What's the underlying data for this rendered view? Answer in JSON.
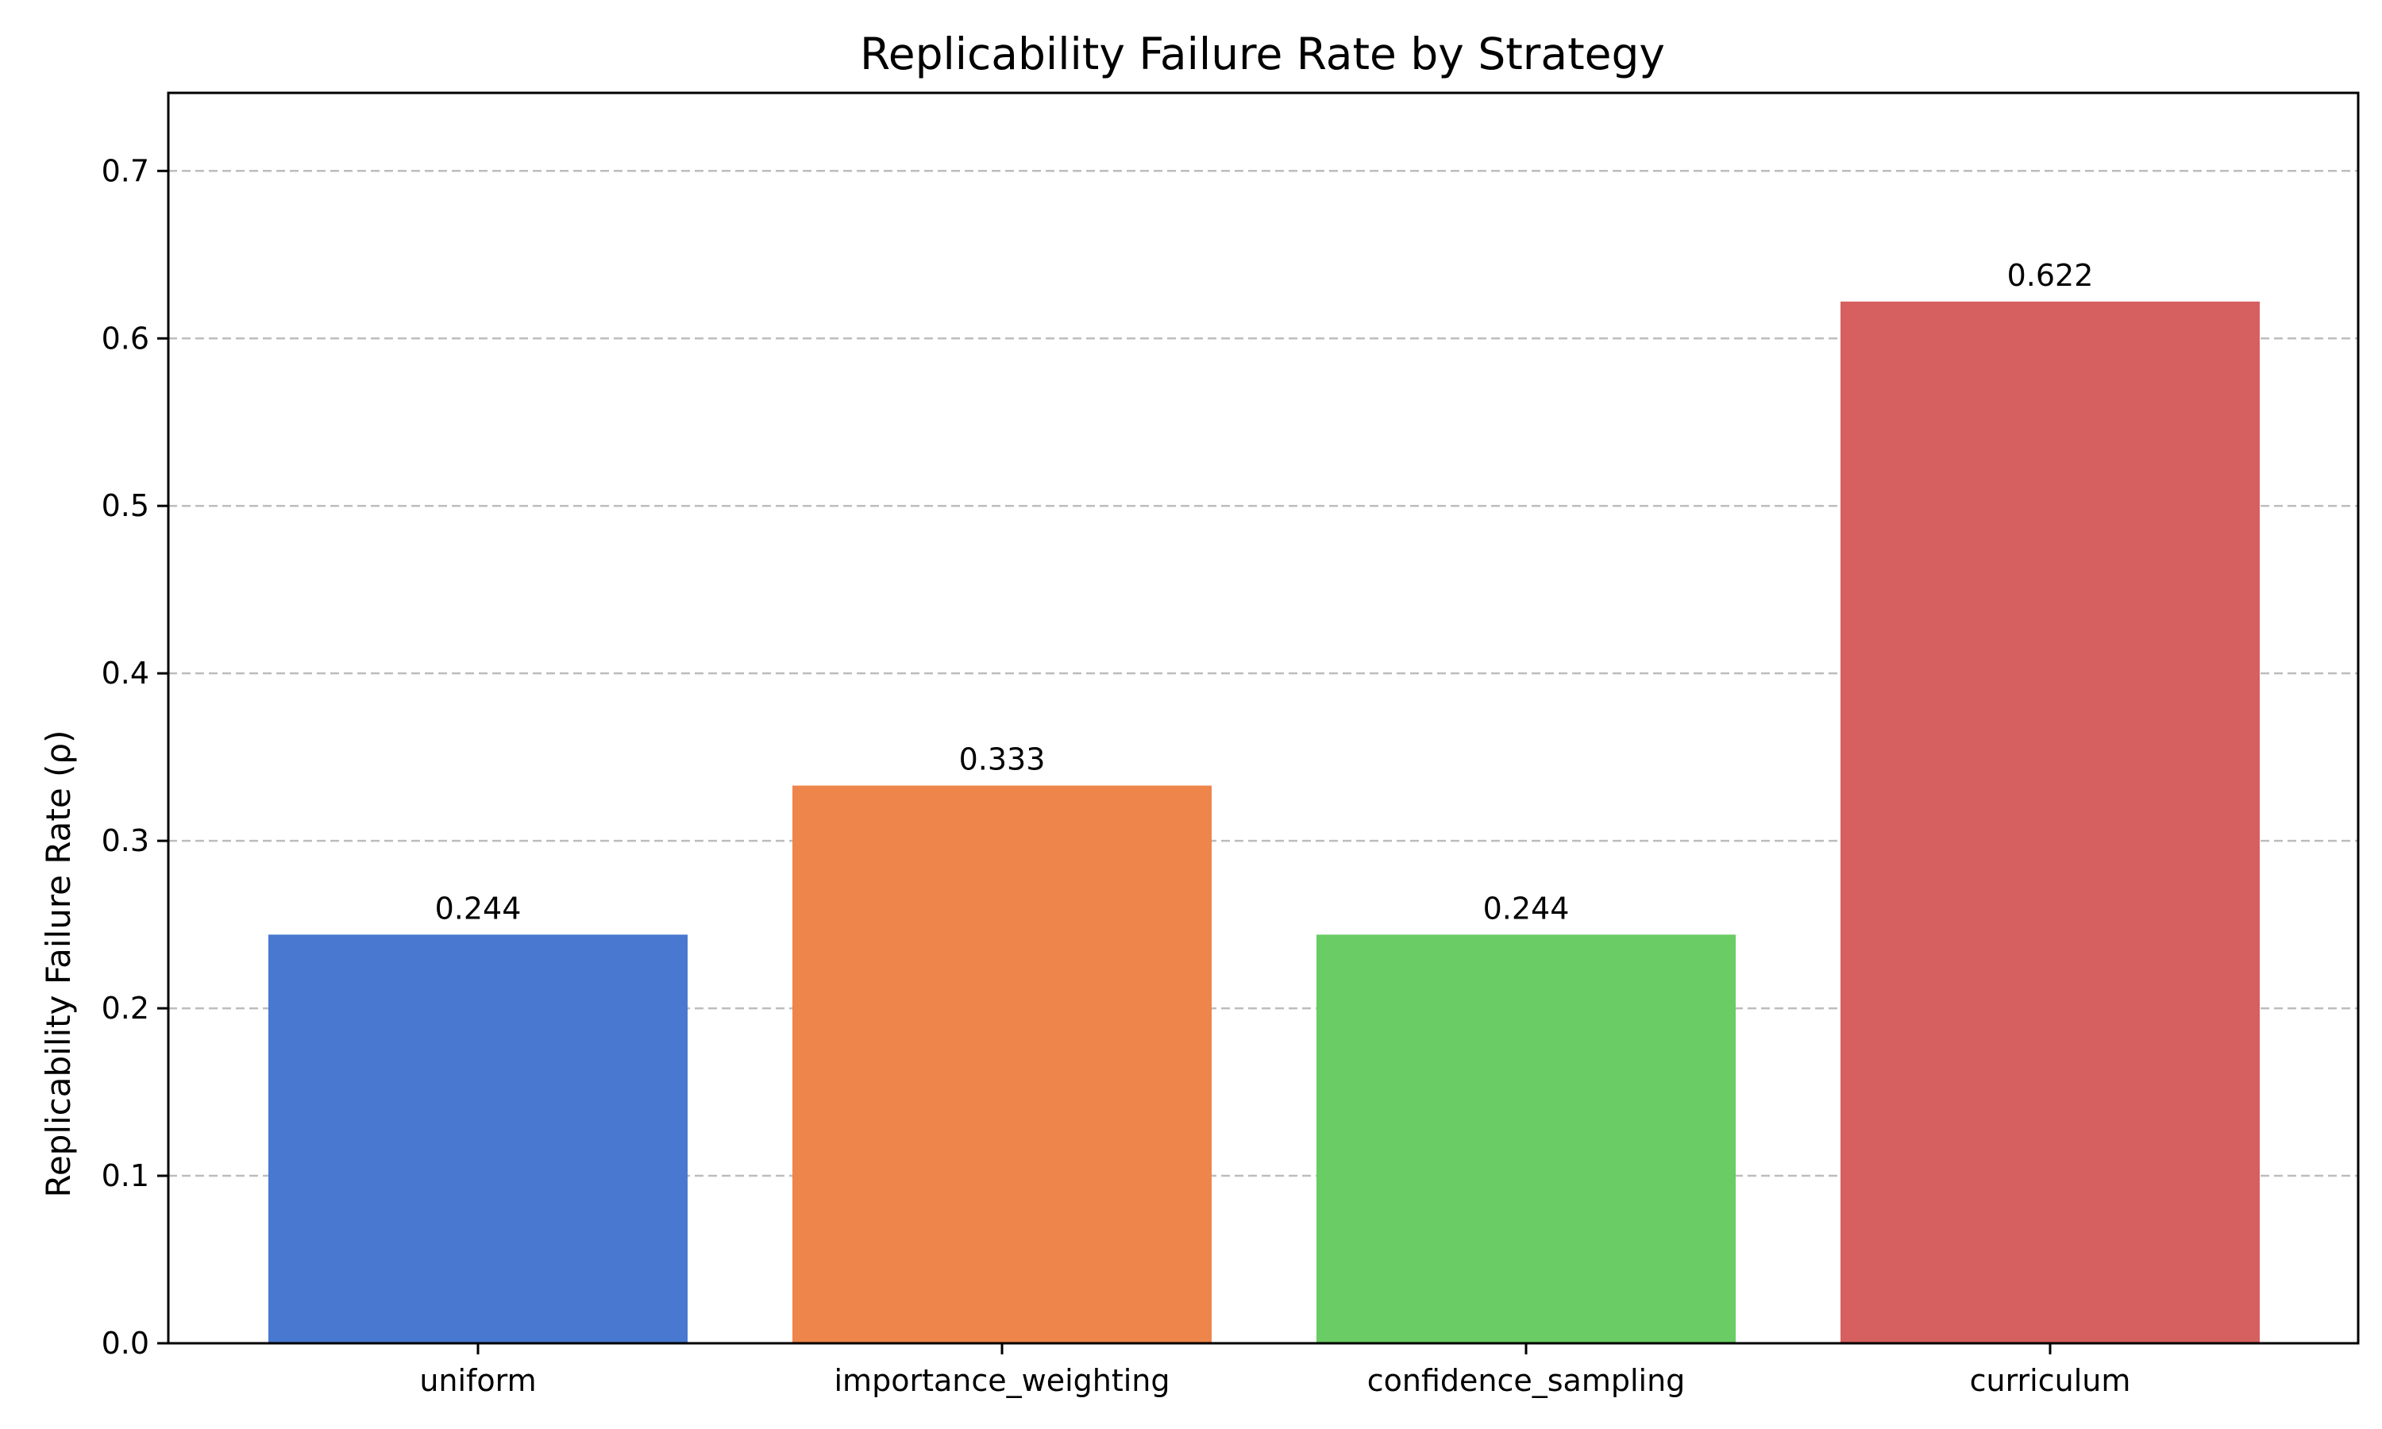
{
  "chart_data": {
    "type": "bar",
    "title": "Replicability Failure Rate by Strategy",
    "xlabel": "",
    "ylabel": "Replicability Failure Rate (ρ)",
    "categories": [
      "uniform",
      "importance_weighting",
      "confidence_sampling",
      "curriculum"
    ],
    "values": [
      0.244,
      0.333,
      0.244,
      0.622
    ],
    "value_labels": [
      "0.244",
      "0.333",
      "0.244",
      "0.622"
    ],
    "colors": [
      "#4878cf",
      "#ee854a",
      "#6acc64",
      "#d65f5f"
    ],
    "ylim": [
      0,
      0.7466
    ],
    "yticks": [
      0.0,
      0.1,
      0.2,
      0.3,
      0.4,
      0.5,
      0.6,
      0.7
    ],
    "ytick_labels": [
      "0.0",
      "0.1",
      "0.2",
      "0.3",
      "0.4",
      "0.5",
      "0.6",
      "0.7"
    ],
    "grid": true,
    "grid_axis": "y",
    "legend": "none"
  }
}
